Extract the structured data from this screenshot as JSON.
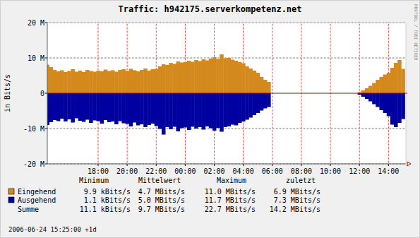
{
  "chart_data": {
    "type": "area",
    "title": "Traffic: h942175.serverkompetenz.net",
    "y_label": "in Bits/s",
    "watermark": "RRDTOOL / TOBI OETIKER",
    "footer": "2006-06-24 15:25:00 +1d",
    "grid": true,
    "xlim": [
      14.5,
      39.2
    ],
    "xticks": [
      {
        "value": 18,
        "label": "18:00"
      },
      {
        "value": 20,
        "label": "20:00"
      },
      {
        "value": 22,
        "label": "22:00"
      },
      {
        "value": 24,
        "label": "00:00"
      },
      {
        "value": 26,
        "label": "02:00"
      },
      {
        "value": 28,
        "label": "04:00"
      },
      {
        "value": 30,
        "label": "06:00"
      },
      {
        "value": 32,
        "label": "08:00"
      },
      {
        "value": 34,
        "label": "10:00"
      },
      {
        "value": 36,
        "label": "12:00"
      },
      {
        "value": 38,
        "label": "14:00"
      }
    ],
    "ylim": [
      -20,
      20
    ],
    "yticks": [
      {
        "value": 20,
        "label": "20 M"
      },
      {
        "value": 10,
        "label": "10 M"
      },
      0,
      {
        "value": -10,
        "label": "-10 M"
      },
      {
        "value": -20,
        "label": "-20 M"
      }
    ],
    "x": [
      14.5,
      14.75,
      15,
      15.25,
      15.5,
      15.75,
      16,
      16.25,
      16.5,
      16.75,
      17,
      17.25,
      17.5,
      17.75,
      18,
      18.25,
      18.5,
      18.75,
      19,
      19.25,
      19.5,
      19.75,
      20,
      20.25,
      20.5,
      20.75,
      21,
      21.25,
      21.5,
      21.75,
      22,
      22.25,
      22.5,
      22.75,
      23,
      23.25,
      23.5,
      23.75,
      24,
      24.25,
      24.5,
      24.75,
      25,
      25.25,
      25.5,
      25.75,
      26,
      26.25,
      26.5,
      26.75,
      27,
      27.25,
      27.5,
      27.75,
      28,
      28.25,
      28.5,
      28.75,
      29,
      29.25,
      29.5,
      29.75,
      30,
      30.25,
      30.5,
      30.75,
      31,
      31.25,
      31.5,
      31.75,
      32,
      32.25,
      32.5,
      32.75,
      33,
      33.25,
      33.5,
      33.75,
      34,
      34.25,
      34.5,
      34.75,
      35,
      35.25,
      35.5,
      35.75,
      36,
      36.25,
      36.5,
      36.75,
      37,
      37.25,
      37.5,
      37.75,
      38,
      38.25,
      38.5,
      38.75,
      39
    ],
    "stats_headers": [
      "Minimum",
      "Mittelwert",
      "Maximum",
      "zuletzt"
    ],
    "series": [
      {
        "name": "Eingehend",
        "color": "#d4891c",
        "stats": [
          "9.9 kBits/s",
          "4.7 MBits/s",
          "11.0 MBits/s",
          "6.9 MBits/s"
        ],
        "values": [
          8.1,
          7.4,
          6.6,
          6.2,
          6.5,
          6.0,
          6.3,
          6.8,
          6.1,
          6.4,
          6.0,
          6.6,
          6.3,
          6.1,
          6.4,
          6.2,
          6.7,
          6.3,
          6.5,
          6.1,
          6.6,
          6.8,
          6.3,
          6.9,
          6.5,
          6.2,
          6.6,
          7.0,
          6.4,
          6.8,
          6.9,
          7.6,
          8.2,
          8.0,
          8.6,
          8.3,
          9.0,
          8.7,
          8.8,
          9.2,
          8.9,
          9.4,
          9.1,
          9.6,
          9.3,
          9.8,
          10.2,
          9.7,
          11.0,
          9.9,
          10.0,
          9.5,
          9.2,
          8.8,
          8.5,
          7.6,
          7.0,
          6.4,
          5.8,
          4.6,
          3.8,
          3.2,
          null,
          null,
          null,
          null,
          null,
          null,
          null,
          null,
          null,
          null,
          null,
          null,
          null,
          null,
          null,
          null,
          null,
          null,
          null,
          null,
          null,
          null,
          null,
          null,
          0.3,
          0.8,
          1.4,
          2.1,
          2.9,
          3.8,
          4.6,
          5.3,
          5.8,
          7.2,
          8.6,
          9.4,
          6.9
        ]
      },
      {
        "name": "Ausgehend",
        "color": "#0000a0",
        "stats": [
          "1.1 kBits/s",
          "5.0 MBits/s",
          "11.7 MBits/s",
          "7.3 MBits/s"
        ],
        "values": [
          -9.0,
          -8.2,
          -7.6,
          -7.9,
          -7.2,
          -8.0,
          -7.4,
          -8.3,
          -7.1,
          -7.8,
          -8.1,
          -7.5,
          -8.4,
          -7.7,
          -7.9,
          -8.6,
          -7.6,
          -8.2,
          -8.0,
          -8.8,
          -7.9,
          -8.5,
          -8.7,
          -9.4,
          -8.3,
          -9.1,
          -8.8,
          -9.6,
          -9.0,
          -8.6,
          -9.3,
          -10.1,
          -11.7,
          -9.6,
          -10.2,
          -9.5,
          -10.8,
          -9.9,
          -9.7,
          -10.4,
          -9.5,
          -10.0,
          -9.6,
          -10.3,
          -9.4,
          -9.9,
          -10.6,
          -9.8,
          -10.9,
          -9.6,
          -9.4,
          -8.9,
          -9.1,
          -8.4,
          -8.0,
          -7.5,
          -6.9,
          -6.2,
          -5.6,
          -4.9,
          -4.3,
          -3.9,
          null,
          null,
          null,
          null,
          null,
          null,
          null,
          null,
          null,
          null,
          null,
          null,
          null,
          null,
          null,
          null,
          null,
          null,
          null,
          null,
          null,
          null,
          null,
          null,
          -0.4,
          -1.0,
          -1.6,
          -2.3,
          -3.1,
          -3.9,
          -4.8,
          -5.6,
          -6.5,
          -8.9,
          -9.6,
          -8.4,
          -7.3
        ]
      }
    ],
    "total": {
      "name": "Summe",
      "stats": [
        "11.1 kBits/s",
        "9.7 MBits/s",
        "22.7 MBits/s",
        "14.2 MBits/s"
      ]
    }
  }
}
